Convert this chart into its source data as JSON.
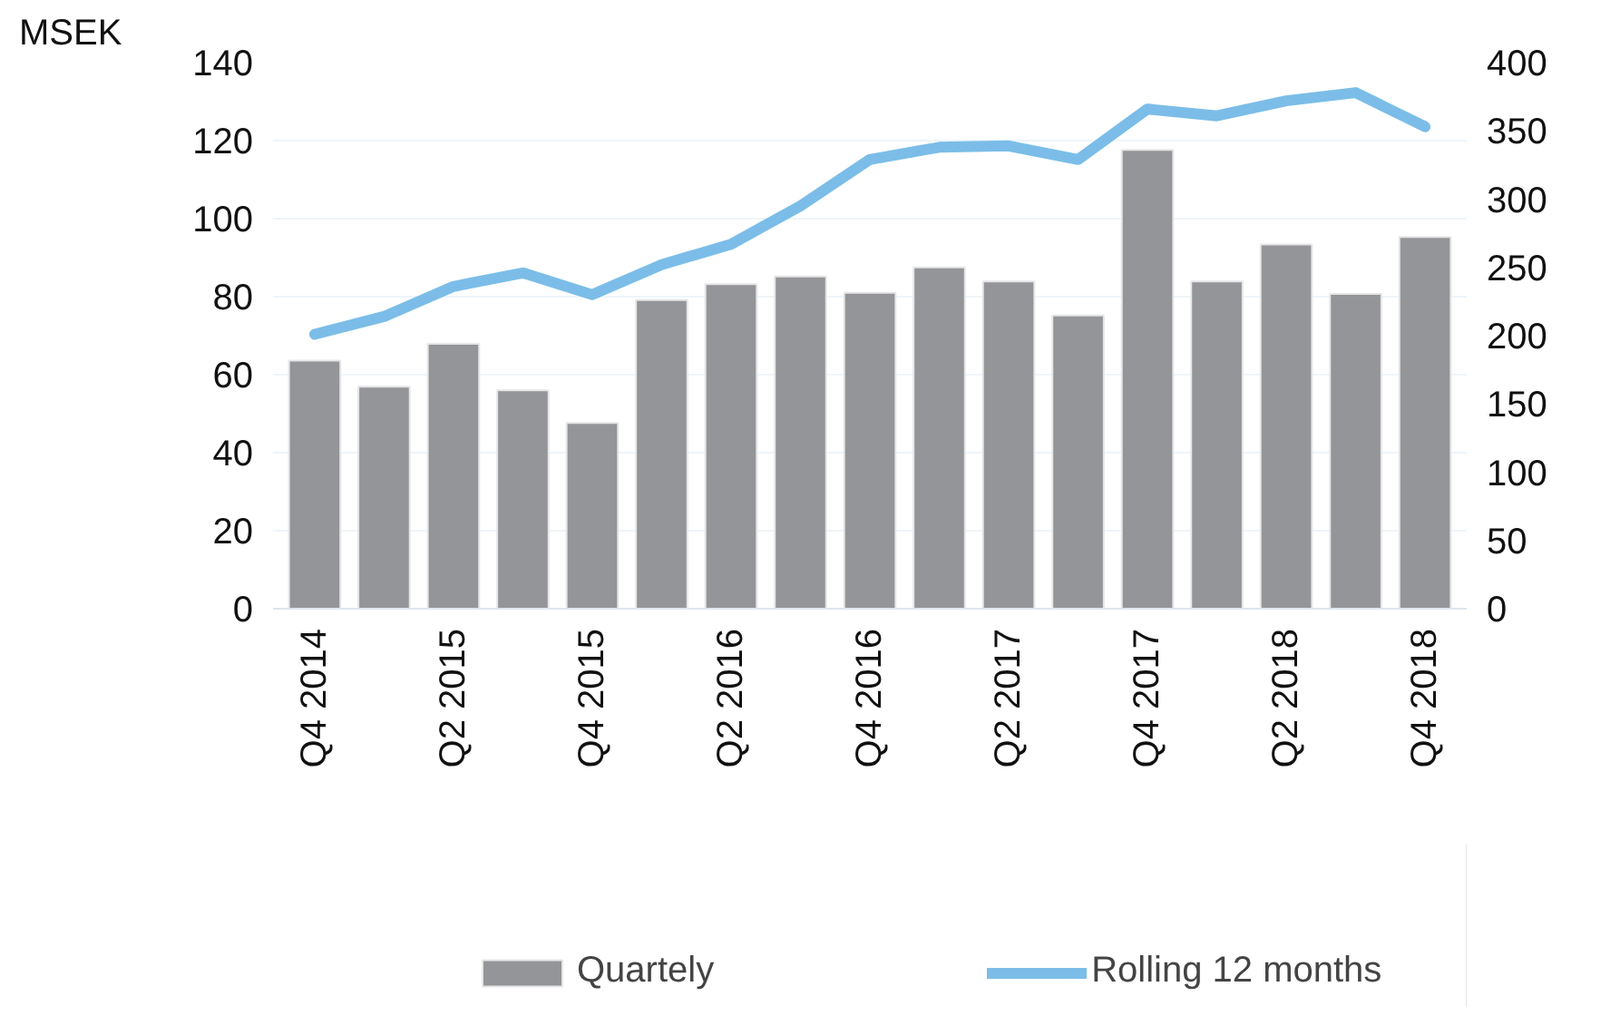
{
  "chart_data": {
    "type": "bar",
    "ylabel": "MSEK",
    "categories": [
      "Q4 2014",
      null,
      "Q2 2015",
      null,
      "Q4 2015",
      null,
      "Q2 2016",
      null,
      "Q4 2016",
      null,
      "Q2 2017",
      null,
      "Q4 2017",
      null,
      "Q2 2018",
      null,
      "Q4 2018"
    ],
    "series": [
      {
        "name": "Quartely",
        "color": "#939598",
        "values": [
          63.6,
          56.9,
          67.9,
          56,
          47.6,
          79.1,
          83.2,
          85.2,
          81,
          87.5,
          83.9,
          75.2,
          117.6,
          83.9,
          93.4,
          80.7,
          95.3
        ]
      },
      {
        "name": "Rolling 12 months",
        "type": "line",
        "axis": "y2",
        "color": "#7bbde8",
        "values": [
          201,
          214,
          236,
          246,
          230,
          252,
          267,
          295,
          329,
          338,
          339,
          329,
          366,
          361,
          372,
          378,
          353
        ]
      }
    ],
    "ylim": [
      0,
      140
    ],
    "yticks": [
      0,
      20,
      40,
      60,
      80,
      100,
      120,
      140
    ],
    "y2lim": [
      0,
      400
    ],
    "y2ticks": [
      0,
      50,
      100,
      150,
      200,
      250,
      300,
      350,
      400
    ],
    "grid": "y",
    "legend": "bottom",
    "marker": "none",
    "line_style": "solid"
  }
}
